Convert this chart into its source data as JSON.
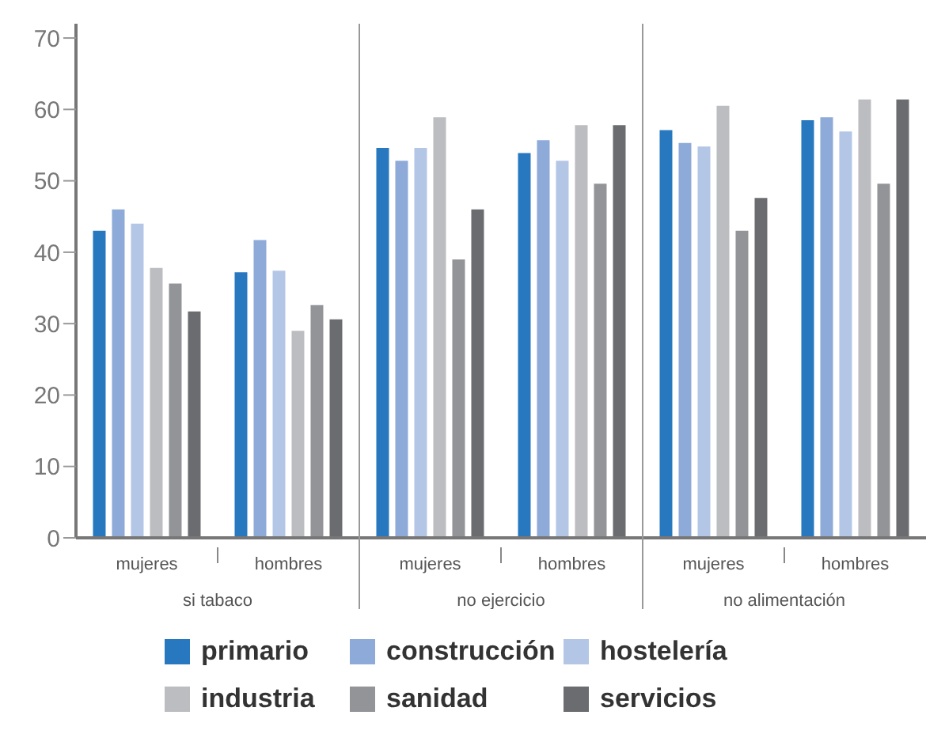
{
  "chart_data": {
    "type": "bar",
    "categories": [
      "mujeres",
      "hombres",
      "mujeres",
      "hombres",
      "mujeres",
      "hombres"
    ],
    "annotations": [
      "si tabaco",
      "no ejercicio",
      "no alimentación"
    ],
    "series": [
      {
        "name": "primario",
        "color": "#2878c0",
        "values": [
          43.0,
          37.2,
          54.6,
          53.9,
          57.1,
          58.5
        ]
      },
      {
        "name": "construcción",
        "color": "#8eaad8",
        "values": [
          46.0,
          41.7,
          52.8,
          55.7,
          55.3,
          58.9
        ]
      },
      {
        "name": "hostelería",
        "color": "#b4c6e6",
        "values": [
          44.0,
          37.4,
          54.6,
          52.8,
          54.8,
          56.9
        ]
      },
      {
        "name": "industria",
        "color": "#bcbdc1",
        "values": [
          37.8,
          29.0,
          58.9,
          57.8,
          60.5,
          61.4
        ]
      },
      {
        "name": "sanidad",
        "color": "#939498",
        "values": [
          35.6,
          32.6,
          39.0,
          49.6,
          43.0,
          49.6
        ]
      },
      {
        "name": "servicios",
        "color": "#6b6c70",
        "values": [
          31.7,
          30.6,
          46.0,
          57.8,
          47.6,
          61.4
        ]
      }
    ],
    "ylim": [
      0,
      72
    ],
    "yticks": [
      0,
      10,
      20,
      30,
      40,
      50,
      60,
      70
    ],
    "grid": false,
    "legend": "bottom"
  }
}
